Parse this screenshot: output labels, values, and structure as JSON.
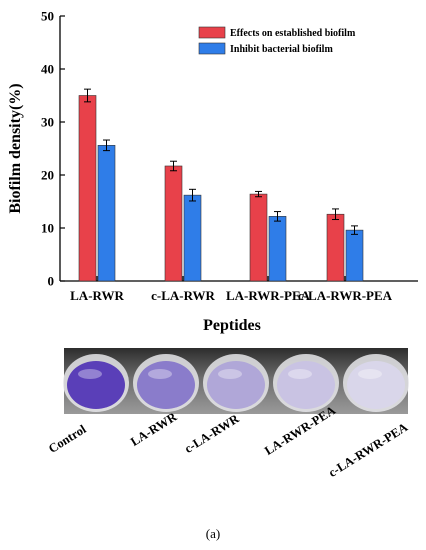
{
  "chart_data": {
    "type": "bar",
    "categories": [
      "LA-RWR",
      "c-LA-RWR",
      "LA-RWR-PEA",
      "c-LA-RWR-PEA"
    ],
    "series": [
      {
        "name": "Effects on established biofilm",
        "color": "#e8414a",
        "values": [
          35.0,
          21.7,
          16.4,
          12.6
        ],
        "errors": [
          1.2,
          0.9,
          0.5,
          1.0
        ]
      },
      {
        "name": "Inhibit bacterial biofilm",
        "color": "#2f7de8",
        "values": [
          25.6,
          16.2,
          12.2,
          9.6
        ],
        "errors": [
          1.0,
          1.1,
          0.9,
          0.8
        ]
      }
    ],
    "xlabel": "Peptides",
    "ylabel": "Biofilm density(%)",
    "ylim": [
      0,
      50
    ],
    "yticks": [
      0,
      10,
      20,
      30,
      40,
      50
    ],
    "legend_position": "top-right",
    "grid": false
  },
  "photo": {
    "well_labels": [
      "Control",
      "LA-RWR",
      "c-LA-RWR",
      "LA-RWR-PEA",
      "c-LA-RWR-PEA"
    ],
    "well_colors": [
      "#5a3fb8",
      "#8a7ccb",
      "#b0a7d8",
      "#c9c3e3",
      "#d9d6ea"
    ]
  },
  "caption": "(a)"
}
